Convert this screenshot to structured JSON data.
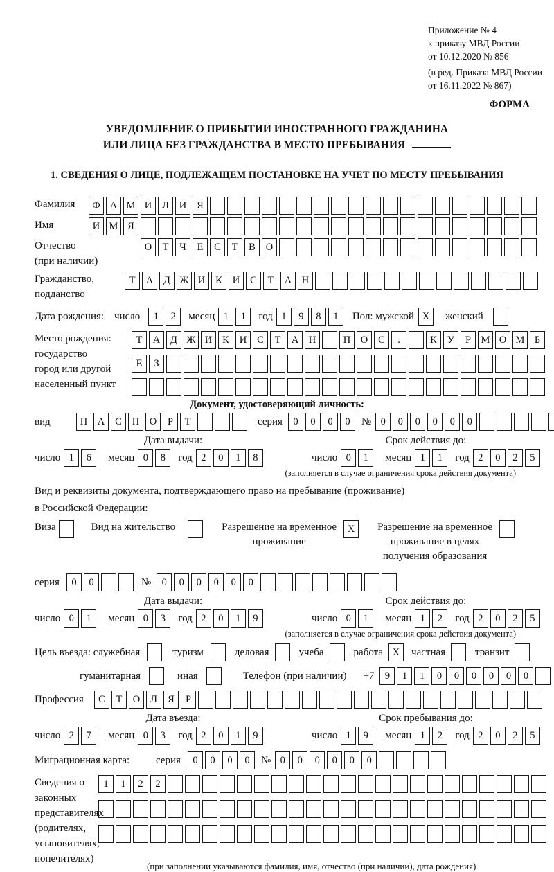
{
  "header": {
    "ref_lines": [
      "Приложение № 4",
      "к приказу МВД России",
      "от 10.12.2020 № 856"
    ],
    "ref_lines2": [
      "(в ред. Приказа МВД России",
      "от 16.11.2022 № 867)"
    ],
    "form": "ФОРМА"
  },
  "title": {
    "line1": "УВЕДОМЛЕНИЕ О ПРИБЫТИИ ИНОСТРАННОГО ГРАЖДАНИНА",
    "line2": "ИЛИ ЛИЦА БЕЗ ГРАЖДАНСТВА В МЕСТО ПРЕБЫВАНИЯ"
  },
  "section1": "1. СВЕДЕНИЯ О ЛИЦЕ, ПОДЛЕЖАЩЕМ ПОСТАНОВКЕ НА УЧЕТ ПО МЕСТУ ПРЕБЫВАНИЯ",
  "labels": {
    "surname": "Фамилия",
    "name": "Имя",
    "patronymic": "Отчество",
    "patronymic2": "(при наличии)",
    "citizenship": "Гражданство,",
    "citizenship2": "подданство",
    "birth_date": "Дата рождения:",
    "day": "число",
    "month": "месяц",
    "year": "год",
    "sex_male": "Пол: мужской",
    "sex_female": "женский",
    "birthplace1": "Место рождения:",
    "birthplace2": "государство",
    "birthplace3": "город или другой",
    "birthplace4": "населенный пункт",
    "identity_doc": "Документ, удостоверяющий личность:",
    "doc_type": "вид",
    "series": "серия",
    "number": "№",
    "issue_date": "Дата выдачи:",
    "valid_until": "Срок действия до:",
    "limited_note": "(заполняется в случае ограничения срока действия документа)",
    "permit_line1": "Вид и реквизиты документа, подтверждающего право на пребывание (проживание)",
    "permit_line2": "в Российской Федерации:",
    "visa": "Виза",
    "residence_permit": "Вид на жительство",
    "rvp_line1": "Разрешение на временное",
    "rvp_line2": "проживание",
    "rvp_edu_line1": "Разрешение на временное",
    "rvp_edu_line2": "проживание в целях",
    "rvp_edu_line3": "получения образования",
    "purpose": "Цель въезда: служебная",
    "tourism": "туризм",
    "business": "деловая",
    "study": "учеба",
    "work": "работа",
    "private": "частная",
    "transit": "транзит",
    "humanitarian": "гуманитарная",
    "other": "иная",
    "phone": "Телефон (при наличии)",
    "phone_prefix": "+7",
    "profession": "Профессия",
    "entry_date": "Дата въезда:",
    "stay_until": "Срок пребывания до:",
    "migration_card": "Миграционная карта:",
    "repr1": "Сведения о",
    "repr2": "законных",
    "repr3": "представителях",
    "repr4": "(родителях,",
    "repr5": "усыновителях,",
    "repr6": "попечителях)",
    "repr_note": "(при заполнении указываются фамилия, имя, отчество (при наличии), дата рождения)"
  },
  "fields": {
    "surname": {
      "value": "ФАМИЛИЯ",
      "len": 26
    },
    "name": {
      "value": "ИМЯ",
      "len": 26
    },
    "patronymic": {
      "value": "ОТЧЕСТВО",
      "len": 23
    },
    "citizenship": {
      "value": "ТАДЖИКИСТАН",
      "len": 24
    },
    "birth_day": {
      "value": "12",
      "len": 2
    },
    "birth_month": {
      "value": "11",
      "len": 2
    },
    "birth_year": {
      "value": "1981",
      "len": 4
    },
    "sex_male": {
      "value": "X",
      "len": 1
    },
    "sex_female": {
      "value": "",
      "len": 1
    },
    "birthplace_row1": {
      "value": "ТАДЖИКИСТАН ПОС. КУРМОМБ",
      "len": 24
    },
    "birthplace_row2": {
      "value": "ЕЗ",
      "len": 24
    },
    "birthplace_row3": {
      "value": "",
      "len": 24
    },
    "doc_type": {
      "value": "ПАСПОРТ",
      "len": 10
    },
    "doc_series": {
      "value": "0000",
      "len": 4
    },
    "doc_number": {
      "value": "000000",
      "len": 11
    },
    "doc_issue_day": {
      "value": "16",
      "len": 2
    },
    "doc_issue_month": {
      "value": "08",
      "len": 2
    },
    "doc_issue_year": {
      "value": "2018",
      "len": 4
    },
    "doc_valid_day": {
      "value": "01",
      "len": 2
    },
    "doc_valid_month": {
      "value": "11",
      "len": 2
    },
    "doc_valid_year": {
      "value": "2025",
      "len": 4
    },
    "visa_cb": {
      "value": "",
      "len": 1
    },
    "residence_cb": {
      "value": "",
      "len": 1
    },
    "rvp_cb": {
      "value": "X",
      "len": 1
    },
    "rvp_edu_cb": {
      "value": "",
      "len": 1
    },
    "permit_series": {
      "value": "00",
      "len": 4
    },
    "permit_number": {
      "value": "000000",
      "len": 14
    },
    "permit_issue_day": {
      "value": "01",
      "len": 2
    },
    "permit_issue_month": {
      "value": "03",
      "len": 2
    },
    "permit_issue_year": {
      "value": "2019",
      "len": 4
    },
    "permit_valid_day": {
      "value": "01",
      "len": 2
    },
    "permit_valid_month": {
      "value": "12",
      "len": 2
    },
    "permit_valid_year": {
      "value": "2025",
      "len": 4
    },
    "purpose_official_cb": {
      "value": "",
      "len": 1
    },
    "purpose_tourism_cb": {
      "value": "",
      "len": 1
    },
    "purpose_business_cb": {
      "value": "",
      "len": 1
    },
    "purpose_study_cb": {
      "value": "",
      "len": 1
    },
    "purpose_work_cb": {
      "value": "X",
      "len": 1
    },
    "purpose_private_cb": {
      "value": "",
      "len": 1
    },
    "purpose_transit_cb": {
      "value": "",
      "len": 1
    },
    "purpose_humanitarian_cb": {
      "value": "",
      "len": 1
    },
    "purpose_other_cb": {
      "value": "",
      "len": 1
    },
    "phone": {
      "value": "911000000",
      "len": 10
    },
    "profession": {
      "value": "СТОЛЯР",
      "len": 26
    },
    "entry_day": {
      "value": "27",
      "len": 2
    },
    "entry_month": {
      "value": "03",
      "len": 2
    },
    "entry_year": {
      "value": "2019",
      "len": 4
    },
    "stay_day": {
      "value": "19",
      "len": 2
    },
    "stay_month": {
      "value": "12",
      "len": 2
    },
    "stay_year": {
      "value": "2025",
      "len": 4
    },
    "migr_series": {
      "value": "0000",
      "len": 4
    },
    "migr_number": {
      "value": "000000",
      "len": 10
    },
    "repr_row1": {
      "value": "1122",
      "len": 26
    },
    "repr_row2": {
      "value": "",
      "len": 26
    },
    "repr_row3": {
      "value": "",
      "len": 26
    }
  }
}
